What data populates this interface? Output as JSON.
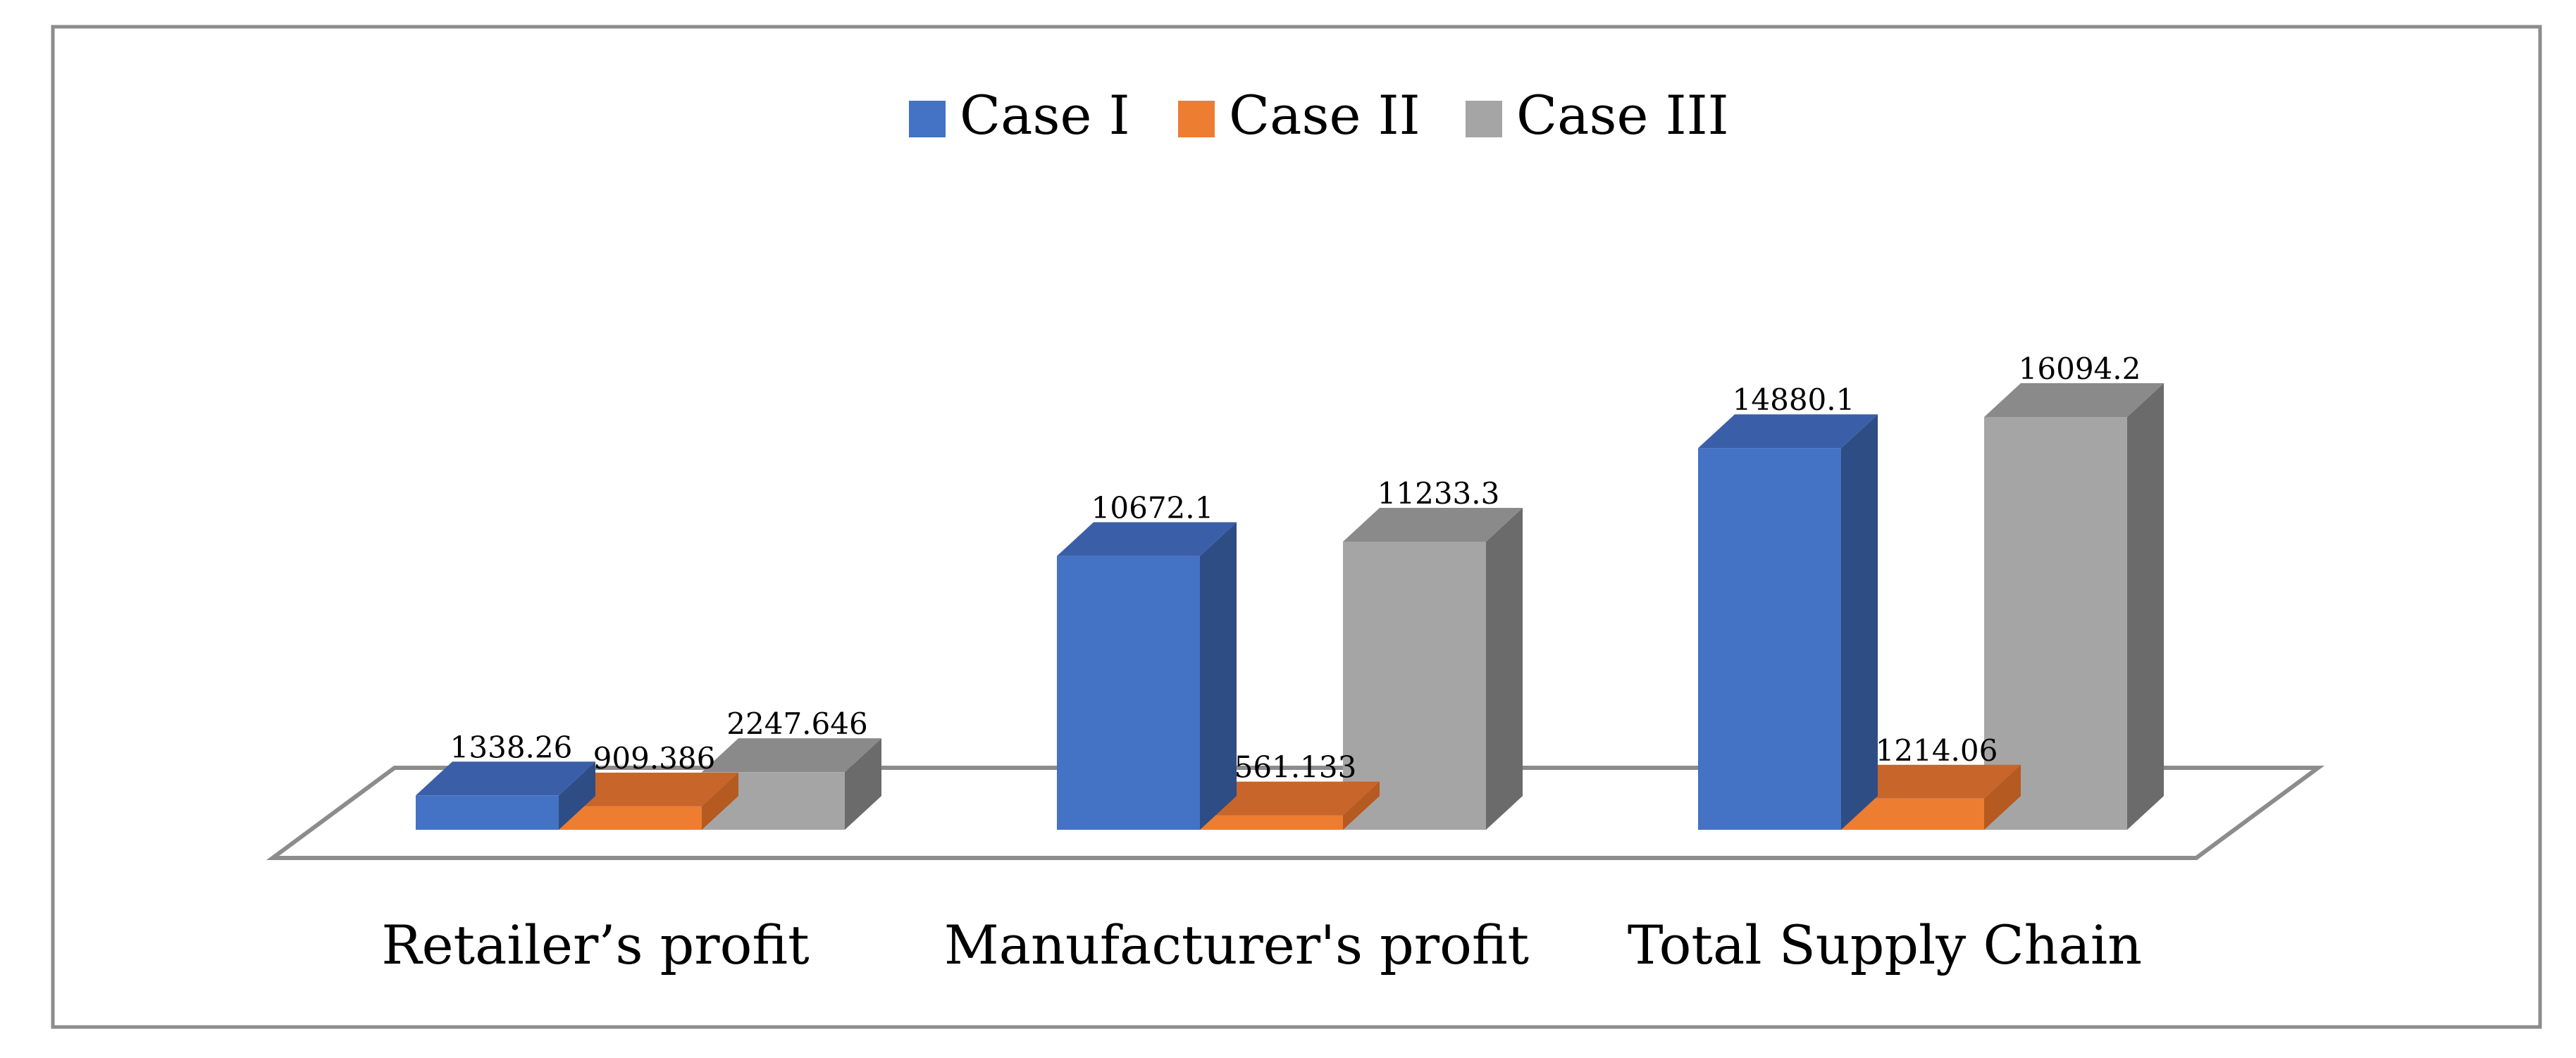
{
  "chart_data": {
    "type": "bar",
    "style": "3d-clustered-column",
    "title": "",
    "xlabel": "",
    "ylabel": "",
    "categories": [
      "Retailer’s profit",
      "Manufacturer's profit",
      "Total Supply Chain"
    ],
    "series": [
      {
        "name": "Case I",
        "values": [
          1338.26,
          10672.1,
          14880.1
        ],
        "labels": [
          "1338.26",
          "10672.1",
          "14880.1"
        ]
      },
      {
        "name": "Case II",
        "values": [
          909.386,
          561.133,
          1214.06
        ],
        "labels": [
          "909.386",
          "561.133",
          "1214.06"
        ]
      },
      {
        "name": "Case III",
        "values": [
          2247.646,
          11233.3,
          16094.2
        ],
        "labels": [
          "2247.646",
          "11233.3",
          "16094.2"
        ]
      }
    ],
    "ylim": [
      0,
      16094.2
    ],
    "grid": false,
    "legend": "top-center",
    "colors": {
      "Case I": {
        "front": "#4472C4",
        "side": "#2E4D85",
        "top": "#3A5FA8"
      },
      "Case II": {
        "front": "#ED7D31",
        "side": "#B55A20",
        "top": "#C8652A"
      },
      "Case III": {
        "front": "#A5A5A5",
        "side": "#6B6B6B",
        "top": "#8A8A8A"
      }
    },
    "frame_color": "#8C8C8C",
    "floor_color": "#8C8C8C"
  }
}
